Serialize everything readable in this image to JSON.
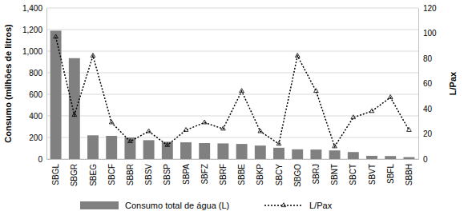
{
  "chart_data": {
    "type": "bar",
    "categories": [
      "SBGL",
      "SBGR",
      "SBEG",
      "SBCF",
      "SBBR",
      "SBSV",
      "SBSP",
      "SBPA",
      "SBFZ",
      "SBRF",
      "SBBE",
      "SBKP",
      "SBCY",
      "SBGO",
      "SBRJ",
      "SBNT",
      "SBCT",
      "SBVT",
      "SBFL",
      "SBBH"
    ],
    "series": [
      {
        "name": "Consumo total de água (L)",
        "type": "bar",
        "color": "#808080",
        "values": [
          1190,
          935,
          220,
          215,
          200,
          175,
          160,
          155,
          148,
          145,
          140,
          125,
          105,
          90,
          88,
          80,
          65,
          30,
          28,
          18
        ]
      },
      {
        "name": "L/Pax",
        "type": "line",
        "axis": "y2",
        "color": "#000000",
        "marker": "triangle",
        "line_style": "dotted",
        "values": [
          97,
          35,
          82,
          29,
          14,
          22,
          11,
          23,
          29,
          24,
          54,
          22,
          12,
          82,
          54,
          10,
          33,
          38,
          49,
          23
        ]
      }
    ],
    "y_label": "Consumo (milhões de litros)",
    "y2_label": "L/Pax",
    "ylim": [
      0,
      1400
    ],
    "yticks": [
      0,
      200,
      400,
      600,
      800,
      {
        "value": 1000,
        "label": "1,000"
      },
      {
        "value": 1200,
        "label": "1,200"
      },
      {
        "value": 1400,
        "label": "1,400"
      }
    ],
    "y2lim": [
      0,
      120
    ],
    "y2ticks": [
      0,
      20,
      40,
      60,
      80,
      100,
      120
    ],
    "grid": true,
    "legend": "bottom"
  }
}
